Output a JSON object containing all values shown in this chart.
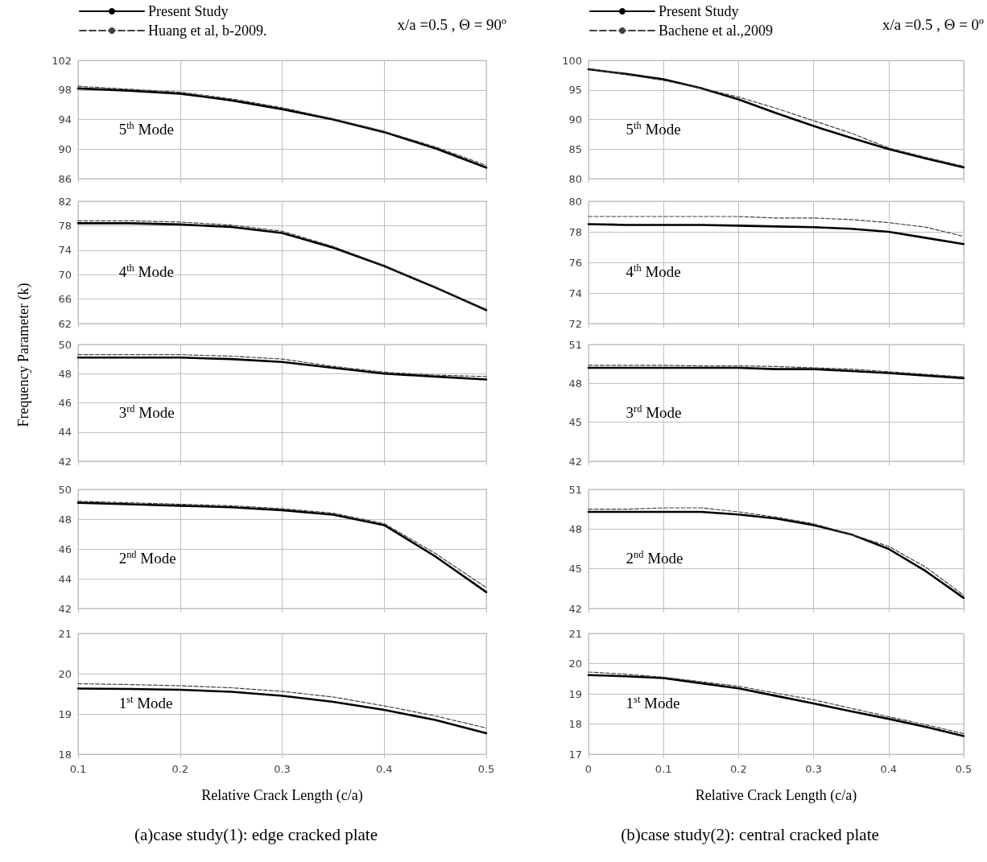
{
  "chart_data": [
    {
      "type": "line",
      "marker": "none",
      "grid": true,
      "legend": "top left",
      "tick_labels": "y",
      "xlim": [
        0.1,
        0.5
      ],
      "xticks": [
        0.1,
        0.2,
        0.3,
        0.4,
        0.5
      ],
      "ylim": [
        86,
        102
      ],
      "yticks": [
        86,
        90,
        94,
        98,
        102
      ],
      "annotations": [
        "5$^{th}$ Mode",
        "x/a =0.5 , Θ = 90º"
      ],
      "x": [
        0.1,
        0.15,
        0.2,
        0.25,
        0.3,
        0.35,
        0.4,
        0.45,
        0.5
      ],
      "series": [
        {
          "name": "Present Study",
          "color": "#000000",
          "line_style": "solid",
          "values": [
            98.2,
            97.9,
            97.5,
            96.6,
            95.4,
            94.0,
            92.3,
            90.1,
            87.5
          ]
        },
        {
          "name": "Huang et al, b-2009.",
          "color": "#404040",
          "line_style": "dashed",
          "values": [
            98.5,
            98.1,
            97.7,
            96.8,
            95.6,
            94.1,
            92.4,
            90.3,
            87.8
          ]
        }
      ]
    },
    {
      "type": "line",
      "marker": "none",
      "grid": true,
      "tick_labels": "y",
      "xlim": [
        0.1,
        0.5
      ],
      "xticks": [
        0.1,
        0.2,
        0.3,
        0.4,
        0.5
      ],
      "ylim": [
        62,
        82
      ],
      "yticks": [
        62,
        66,
        70,
        74,
        78,
        82
      ],
      "annotations": [
        "4$^{th}$ Mode"
      ],
      "x": [
        0.1,
        0.15,
        0.2,
        0.25,
        0.3,
        0.35,
        0.4,
        0.45,
        0.5
      ],
      "series": [
        {
          "color": "#000000",
          "line_style": "solid",
          "values": [
            78.4,
            78.4,
            78.2,
            77.8,
            76.8,
            74.4,
            71.4,
            67.9,
            64.2
          ]
        },
        {
          "color": "#404040",
          "line_style": "dashed",
          "values": [
            78.8,
            78.8,
            78.6,
            78.1,
            77.1,
            74.6,
            71.5,
            68.0,
            64.3
          ]
        }
      ]
    },
    {
      "type": "line",
      "marker": "none",
      "grid": true,
      "tick_labels": "y",
      "ylabel": "Frequency Parameter (k)",
      "xlim": [
        0.1,
        0.5
      ],
      "xticks": [
        0.1,
        0.2,
        0.3,
        0.4,
        0.5
      ],
      "ylim": [
        42,
        50
      ],
      "yticks": [
        42,
        44,
        46,
        48,
        50
      ],
      "annotations": [
        "3$^{rd}$ Mode"
      ],
      "x": [
        0.1,
        0.15,
        0.2,
        0.25,
        0.3,
        0.35,
        0.4,
        0.45,
        0.5
      ],
      "series": [
        {
          "color": "#000000",
          "line_style": "solid",
          "values": [
            49.1,
            49.1,
            49.1,
            49.0,
            48.8,
            48.4,
            48.0,
            47.8,
            47.6
          ]
        },
        {
          "color": "#404040",
          "line_style": "dashed",
          "values": [
            49.3,
            49.3,
            49.3,
            49.2,
            49.0,
            48.5,
            48.1,
            47.9,
            47.8
          ]
        }
      ]
    },
    {
      "type": "line",
      "marker": "none",
      "grid": true,
      "tick_labels": "y",
      "xlim": [
        0.1,
        0.5
      ],
      "xticks": [
        0.1,
        0.2,
        0.3,
        0.4,
        0.5
      ],
      "ylim": [
        42,
        50
      ],
      "yticks": [
        42,
        44,
        46,
        48,
        50
      ],
      "annotations": [
        "2$^{nd}$ Mode"
      ],
      "x": [
        0.1,
        0.15,
        0.2,
        0.25,
        0.3,
        0.35,
        0.4,
        0.45,
        0.5
      ],
      "series": [
        {
          "color": "#000000",
          "line_style": "solid",
          "values": [
            49.1,
            49.0,
            48.9,
            48.8,
            48.6,
            48.3,
            47.6,
            45.5,
            43.1
          ]
        },
        {
          "color": "#404040",
          "line_style": "dashed",
          "values": [
            49.2,
            49.1,
            49.0,
            48.9,
            48.7,
            48.4,
            47.7,
            45.7,
            43.4
          ]
        }
      ]
    },
    {
      "type": "line",
      "marker": "none",
      "grid": true,
      "xlabel": "Relative Crack Length (c/a)",
      "subtitle": "(a)case study(1): edge cracked plate",
      "xlim": [
        0.1,
        0.5
      ],
      "xticks": [
        0.1,
        0.2,
        0.3,
        0.4,
        0.5
      ],
      "ylim": [
        18,
        21
      ],
      "yticks": [
        18,
        19,
        20,
        21
      ],
      "annotations": [
        "1$^{st}$ Mode"
      ],
      "x": [
        0.1,
        0.15,
        0.2,
        0.25,
        0.3,
        0.35,
        0.4,
        0.45,
        0.5
      ],
      "series": [
        {
          "color": "#000000",
          "line_style": "solid",
          "values": [
            19.63,
            19.62,
            19.6,
            19.55,
            19.45,
            19.3,
            19.1,
            18.85,
            18.52
          ]
        },
        {
          "color": "#404040",
          "line_style": "dashed",
          "values": [
            19.75,
            19.73,
            19.7,
            19.65,
            19.56,
            19.42,
            19.2,
            18.95,
            18.65
          ]
        }
      ]
    },
    {
      "type": "line",
      "marker": "none",
      "grid": true,
      "legend": "top left",
      "tick_labels": "y",
      "xlim": [
        0,
        0.5
      ],
      "xticks": [
        0,
        0.1,
        0.2,
        0.3,
        0.4,
        0.5
      ],
      "ylim": [
        80,
        100
      ],
      "yticks": [
        80,
        85,
        90,
        95,
        100
      ],
      "annotations": [
        "5$^{th}$ Mode",
        "x/a =0.5 , Θ = 0º"
      ],
      "x": [
        0,
        0.05,
        0.1,
        0.15,
        0.2,
        0.25,
        0.3,
        0.35,
        0.4,
        0.45,
        0.5
      ],
      "series": [
        {
          "name": "Present Study",
          "color": "#000000",
          "line_style": "solid",
          "values": [
            98.5,
            97.7,
            96.8,
            95.3,
            93.4,
            91.1,
            88.9,
            86.9,
            85.0,
            83.4,
            81.9
          ]
        },
        {
          "name": "Bachene et al.,2009",
          "color": "#404040",
          "line_style": "dashed",
          "values": [
            98.6,
            97.6,
            96.6,
            95.3,
            93.8,
            91.9,
            89.8,
            87.7,
            85.2,
            83.6,
            82.1
          ]
        }
      ]
    },
    {
      "type": "line",
      "marker": "none",
      "grid": true,
      "tick_labels": "y",
      "xlim": [
        0,
        0.5
      ],
      "xticks": [
        0,
        0.1,
        0.2,
        0.3,
        0.4,
        0.5
      ],
      "ylim": [
        72,
        80
      ],
      "yticks": [
        72,
        74,
        76,
        78,
        80
      ],
      "annotations": [
        "4$^{th}$  Mode"
      ],
      "x": [
        0,
        0.05,
        0.1,
        0.15,
        0.2,
        0.25,
        0.3,
        0.35,
        0.4,
        0.45,
        0.5
      ],
      "series": [
        {
          "color": "#000000",
          "line_style": "solid",
          "values": [
            78.5,
            78.45,
            78.45,
            78.45,
            78.4,
            78.35,
            78.3,
            78.2,
            78.0,
            77.6,
            77.2
          ]
        },
        {
          "color": "#404040",
          "line_style": "dashed",
          "values": [
            79.0,
            79.0,
            79.0,
            79.0,
            79.0,
            78.9,
            78.9,
            78.8,
            78.6,
            78.3,
            77.7
          ]
        }
      ]
    },
    {
      "type": "line",
      "marker": "none",
      "grid": true,
      "tick_labels": "y",
      "xlim": [
        0,
        0.5
      ],
      "xticks": [
        0,
        0.1,
        0.2,
        0.3,
        0.4,
        0.5
      ],
      "ylim": [
        42,
        51
      ],
      "yticks": [
        42,
        45,
        48,
        51
      ],
      "annotations": [
        "3$^{rd}$ Mode"
      ],
      "x": [
        0,
        0.05,
        0.1,
        0.15,
        0.2,
        0.25,
        0.3,
        0.35,
        0.4,
        0.45,
        0.5
      ],
      "series": [
        {
          "color": "#000000",
          "line_style": "solid",
          "values": [
            49.2,
            49.2,
            49.2,
            49.2,
            49.2,
            49.1,
            49.1,
            48.95,
            48.8,
            48.6,
            48.4
          ]
        },
        {
          "color": "#404040",
          "line_style": "dashed",
          "values": [
            49.4,
            49.4,
            49.4,
            49.35,
            49.35,
            49.3,
            49.2,
            49.1,
            48.9,
            48.7,
            48.5
          ]
        }
      ]
    },
    {
      "type": "line",
      "marker": "none",
      "grid": true,
      "tick_labels": "y",
      "xlim": [
        0,
        0.5
      ],
      "xticks": [
        0,
        0.1,
        0.2,
        0.3,
        0.4,
        0.5
      ],
      "ylim": [
        42,
        51
      ],
      "yticks": [
        42,
        45,
        48,
        51
      ],
      "annotations": [
        "2$^{nd}$ Mode"
      ],
      "x": [
        0,
        0.05,
        0.1,
        0.15,
        0.2,
        0.25,
        0.3,
        0.35,
        0.4,
        0.45,
        0.5
      ],
      "series": [
        {
          "color": "#000000",
          "line_style": "solid",
          "values": [
            49.3,
            49.3,
            49.3,
            49.3,
            49.1,
            48.8,
            48.3,
            47.6,
            46.5,
            44.8,
            42.8
          ]
        },
        {
          "color": "#404040",
          "line_style": "dashed",
          "values": [
            49.5,
            49.5,
            49.6,
            49.6,
            49.3,
            48.9,
            48.4,
            47.6,
            46.7,
            45.1,
            43.0
          ]
        }
      ]
    },
    {
      "type": "line",
      "marker": "none",
      "grid": true,
      "xlabel": "Relative Crack Length (c/a)",
      "subtitle": "(b)case study(2):  central cracked plate",
      "xlim": [
        0,
        0.5
      ],
      "xticks": [
        0,
        0.1,
        0.2,
        0.3,
        0.4,
        0.5
      ],
      "ylim": [
        17,
        21
      ],
      "yticks": [
        17,
        18,
        19,
        20,
        21
      ],
      "annotations": [
        "1$^{st}$ Mode"
      ],
      "x": [
        0,
        0.05,
        0.1,
        0.15,
        0.2,
        0.25,
        0.3,
        0.35,
        0.4,
        0.45,
        0.5
      ],
      "series": [
        {
          "color": "#000000",
          "line_style": "solid",
          "values": [
            19.62,
            19.58,
            19.52,
            19.35,
            19.18,
            18.93,
            18.68,
            18.42,
            18.17,
            17.9,
            17.6
          ]
        },
        {
          "color": "#404040",
          "line_style": "dashed",
          "values": [
            19.72,
            19.65,
            19.55,
            19.4,
            19.25,
            19.02,
            18.8,
            18.52,
            18.24,
            17.97,
            17.68
          ]
        }
      ]
    }
  ]
}
